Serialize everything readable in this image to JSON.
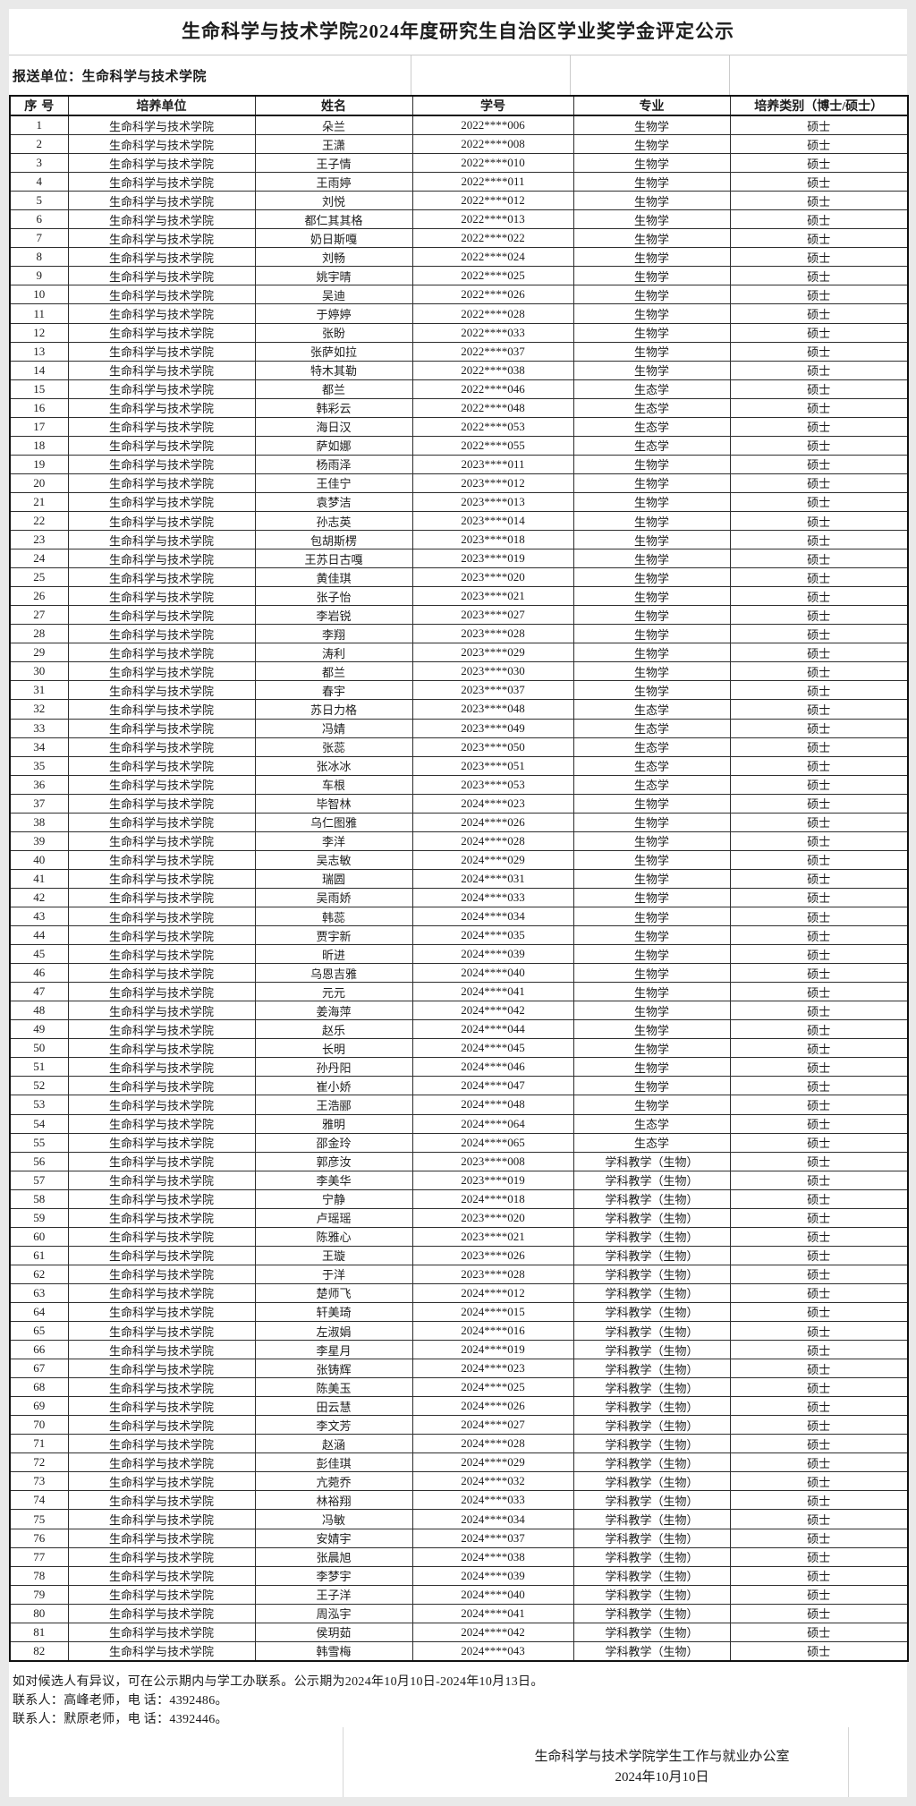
{
  "title": "生命科学与技术学院2024年度研究生自治区学业奖学金评定公示",
  "report_unit": {
    "label": "报送单位：",
    "value": "生命科学与技术学院"
  },
  "table": {
    "headers": [
      "序号",
      "培养单位",
      "姓名",
      "学号",
      "专业",
      "培养类别（博士/硕士）"
    ],
    "rows": [
      [
        "1",
        "生命科学与技术学院",
        "朵兰",
        "2022****006",
        "生物学",
        "硕士"
      ],
      [
        "2",
        "生命科学与技术学院",
        "王潇",
        "2022****008",
        "生物学",
        "硕士"
      ],
      [
        "3",
        "生命科学与技术学院",
        "王子情",
        "2022****010",
        "生物学",
        "硕士"
      ],
      [
        "4",
        "生命科学与技术学院",
        "王雨婷",
        "2022****011",
        "生物学",
        "硕士"
      ],
      [
        "5",
        "生命科学与技术学院",
        "刘悦",
        "2022****012",
        "生物学",
        "硕士"
      ],
      [
        "6",
        "生命科学与技术学院",
        "都仁其其格",
        "2022****013",
        "生物学",
        "硕士"
      ],
      [
        "7",
        "生命科学与技术学院",
        "奶日斯嘎",
        "2022****022",
        "生物学",
        "硕士"
      ],
      [
        "8",
        "生命科学与技术学院",
        "刘畅",
        "2022****024",
        "生物学",
        "硕士"
      ],
      [
        "9",
        "生命科学与技术学院",
        "姚宇晴",
        "2022****025",
        "生物学",
        "硕士"
      ],
      [
        "10",
        "生命科学与技术学院",
        "吴迪",
        "2022****026",
        "生物学",
        "硕士"
      ],
      [
        "11",
        "生命科学与技术学院",
        "于婷婷",
        "2022****028",
        "生物学",
        "硕士"
      ],
      [
        "12",
        "生命科学与技术学院",
        "张盼",
        "2022****033",
        "生物学",
        "硕士"
      ],
      [
        "13",
        "生命科学与技术学院",
        "张萨如拉",
        "2022****037",
        "生物学",
        "硕士"
      ],
      [
        "14",
        "生命科学与技术学院",
        "特木其勒",
        "2022****038",
        "生物学",
        "硕士"
      ],
      [
        "15",
        "生命科学与技术学院",
        "都兰",
        "2022****046",
        "生态学",
        "硕士"
      ],
      [
        "16",
        "生命科学与技术学院",
        "韩彩云",
        "2022****048",
        "生态学",
        "硕士"
      ],
      [
        "17",
        "生命科学与技术学院",
        "海日汉",
        "2022****053",
        "生态学",
        "硕士"
      ],
      [
        "18",
        "生命科学与技术学院",
        "萨如娜",
        "2022****055",
        "生态学",
        "硕士"
      ],
      [
        "19",
        "生命科学与技术学院",
        "杨雨泽",
        "2023****011",
        "生物学",
        "硕士"
      ],
      [
        "20",
        "生命科学与技术学院",
        "王佳宁",
        "2023****012",
        "生物学",
        "硕士"
      ],
      [
        "21",
        "生命科学与技术学院",
        "袁梦洁",
        "2023****013",
        "生物学",
        "硕士"
      ],
      [
        "22",
        "生命科学与技术学院",
        "孙志英",
        "2023****014",
        "生物学",
        "硕士"
      ],
      [
        "23",
        "生命科学与技术学院",
        "包胡斯楞",
        "2023****018",
        "生物学",
        "硕士"
      ],
      [
        "24",
        "生命科学与技术学院",
        "王苏日古嘎",
        "2023****019",
        "生物学",
        "硕士"
      ],
      [
        "25",
        "生命科学与技术学院",
        "黄佳琪",
        "2023****020",
        "生物学",
        "硕士"
      ],
      [
        "26",
        "生命科学与技术学院",
        "张子怡",
        "2023****021",
        "生物学",
        "硕士"
      ],
      [
        "27",
        "生命科学与技术学院",
        "李岩锐",
        "2023****027",
        "生物学",
        "硕士"
      ],
      [
        "28",
        "生命科学与技术学院",
        "李翔",
        "2023****028",
        "生物学",
        "硕士"
      ],
      [
        "29",
        "生命科学与技术学院",
        "涛利",
        "2023****029",
        "生物学",
        "硕士"
      ],
      [
        "30",
        "生命科学与技术学院",
        "都兰",
        "2023****030",
        "生物学",
        "硕士"
      ],
      [
        "31",
        "生命科学与技术学院",
        "春宇",
        "2023****037",
        "生物学",
        "硕士"
      ],
      [
        "32",
        "生命科学与技术学院",
        "苏日力格",
        "2023****048",
        "生态学",
        "硕士"
      ],
      [
        "33",
        "生命科学与技术学院",
        "冯婧",
        "2023****049",
        "生态学",
        "硕士"
      ],
      [
        "34",
        "生命科学与技术学院",
        "张蕊",
        "2023****050",
        "生态学",
        "硕士"
      ],
      [
        "35",
        "生命科学与技术学院",
        "张冰冰",
        "2023****051",
        "生态学",
        "硕士"
      ],
      [
        "36",
        "生命科学与技术学院",
        "车根",
        "2023****053",
        "生态学",
        "硕士"
      ],
      [
        "37",
        "生命科学与技术学院",
        "毕智林",
        "2024****023",
        "生物学",
        "硕士"
      ],
      [
        "38",
        "生命科学与技术学院",
        "乌仁图雅",
        "2024****026",
        "生物学",
        "硕士"
      ],
      [
        "39",
        "生命科学与技术学院",
        "李洋",
        "2024****028",
        "生物学",
        "硕士"
      ],
      [
        "40",
        "生命科学与技术学院",
        "吴志敏",
        "2024****029",
        "生物学",
        "硕士"
      ],
      [
        "41",
        "生命科学与技术学院",
        "瑞圆",
        "2024****031",
        "生物学",
        "硕士"
      ],
      [
        "42",
        "生命科学与技术学院",
        "吴雨娇",
        "2024****033",
        "生物学",
        "硕士"
      ],
      [
        "43",
        "生命科学与技术学院",
        "韩蕊",
        "2024****034",
        "生物学",
        "硕士"
      ],
      [
        "44",
        "生命科学与技术学院",
        "贾宇新",
        "2024****035",
        "生物学",
        "硕士"
      ],
      [
        "45",
        "生命科学与技术学院",
        "昕进",
        "2024****039",
        "生物学",
        "硕士"
      ],
      [
        "46",
        "生命科学与技术学院",
        "乌恩吉雅",
        "2024****040",
        "生物学",
        "硕士"
      ],
      [
        "47",
        "生命科学与技术学院",
        "元元",
        "2024****041",
        "生物学",
        "硕士"
      ],
      [
        "48",
        "生命科学与技术学院",
        "姜海萍",
        "2024****042",
        "生物学",
        "硕士"
      ],
      [
        "49",
        "生命科学与技术学院",
        "赵乐",
        "2024****044",
        "生物学",
        "硕士"
      ],
      [
        "50",
        "生命科学与技术学院",
        "长明",
        "2024****045",
        "生物学",
        "硕士"
      ],
      [
        "51",
        "生命科学与技术学院",
        "孙丹阳",
        "2024****046",
        "生物学",
        "硕士"
      ],
      [
        "52",
        "生命科学与技术学院",
        "崔小娇",
        "2024****047",
        "生物学",
        "硕士"
      ],
      [
        "53",
        "生命科学与技术学院",
        "王浩郦",
        "2024****048",
        "生物学",
        "硕士"
      ],
      [
        "54",
        "生命科学与技术学院",
        "雅明",
        "2024****064",
        "生态学",
        "硕士"
      ],
      [
        "55",
        "生命科学与技术学院",
        "邵金玲",
        "2024****065",
        "生态学",
        "硕士"
      ],
      [
        "56",
        "生命科学与技术学院",
        "郭彦汝",
        "2023****008",
        "学科教学（生物）",
        "硕士"
      ],
      [
        "57",
        "生命科学与技术学院",
        "李美华",
        "2023****019",
        "学科教学（生物）",
        "硕士"
      ],
      [
        "58",
        "生命科学与技术学院",
        "宁静",
        "2024****018",
        "学科教学（生物）",
        "硕士"
      ],
      [
        "59",
        "生命科学与技术学院",
        "卢瑶瑶",
        "2023****020",
        "学科教学（生物）",
        "硕士"
      ],
      [
        "60",
        "生命科学与技术学院",
        "陈雅心",
        "2023****021",
        "学科教学（生物）",
        "硕士"
      ],
      [
        "61",
        "生命科学与技术学院",
        "王璇",
        "2023****026",
        "学科教学（生物）",
        "硕士"
      ],
      [
        "62",
        "生命科学与技术学院",
        "于洋",
        "2023****028",
        "学科教学（生物）",
        "硕士"
      ],
      [
        "63",
        "生命科学与技术学院",
        "楚师飞",
        "2024****012",
        "学科教学（生物）",
        "硕士"
      ],
      [
        "64",
        "生命科学与技术学院",
        "轩美琦",
        "2024****015",
        "学科教学（生物）",
        "硕士"
      ],
      [
        "65",
        "生命科学与技术学院",
        "左淑娟",
        "2024****016",
        "学科教学（生物）",
        "硕士"
      ],
      [
        "66",
        "生命科学与技术学院",
        "李星月",
        "2024****019",
        "学科教学（生物）",
        "硕士"
      ],
      [
        "67",
        "生命科学与技术学院",
        "张铸辉",
        "2024****023",
        "学科教学（生物）",
        "硕士"
      ],
      [
        "68",
        "生命科学与技术学院",
        "陈美玉",
        "2024****025",
        "学科教学（生物）",
        "硕士"
      ],
      [
        "69",
        "生命科学与技术学院",
        "田云慧",
        "2024****026",
        "学科教学（生物）",
        "硕士"
      ],
      [
        "70",
        "生命科学与技术学院",
        "李文芳",
        "2024****027",
        "学科教学（生物）",
        "硕士"
      ],
      [
        "71",
        "生命科学与技术学院",
        "赵涵",
        "2024****028",
        "学科教学（生物）",
        "硕士"
      ],
      [
        "72",
        "生命科学与技术学院",
        "彭佳琪",
        "2024****029",
        "学科教学（生物）",
        "硕士"
      ],
      [
        "73",
        "生命科学与技术学院",
        "亢菀乔",
        "2024****032",
        "学科教学（生物）",
        "硕士"
      ],
      [
        "74",
        "生命科学与技术学院",
        "林裕翔",
        "2024****033",
        "学科教学（生物）",
        "硕士"
      ],
      [
        "75",
        "生命科学与技术学院",
        "冯敏",
        "2024****034",
        "学科教学（生物）",
        "硕士"
      ],
      [
        "76",
        "生命科学与技术学院",
        "安婧宇",
        "2024****037",
        "学科教学（生物）",
        "硕士"
      ],
      [
        "77",
        "生命科学与技术学院",
        "张晨旭",
        "2024****038",
        "学科教学（生物）",
        "硕士"
      ],
      [
        "78",
        "生命科学与技术学院",
        "李梦宇",
        "2024****039",
        "学科教学（生物）",
        "硕士"
      ],
      [
        "79",
        "生命科学与技术学院",
        "王子洋",
        "2024****040",
        "学科教学（生物）",
        "硕士"
      ],
      [
        "80",
        "生命科学与技术学院",
        "周泓宇",
        "2024****041",
        "学科教学（生物）",
        "硕士"
      ],
      [
        "81",
        "生命科学与技术学院",
        "侯玥茹",
        "2024****042",
        "学科教学（生物）",
        "硕士"
      ],
      [
        "82",
        "生命科学与技术学院",
        "韩雪梅",
        "2024****043",
        "学科教学（生物）",
        "硕士"
      ]
    ]
  },
  "footer": {
    "notice": "如对候选人有异议，可在公示期内与学工办联系。公示期为2024年10月10日-2024年10月13日。",
    "contact1": "联系人：高峰老师，电 话：4392486。",
    "contact2": "联系人：默原老师，电 话：4392446。"
  },
  "signature": {
    "office": "生命科学与技术学院学生工作与就业办公室",
    "date": "2024年10月10日"
  }
}
